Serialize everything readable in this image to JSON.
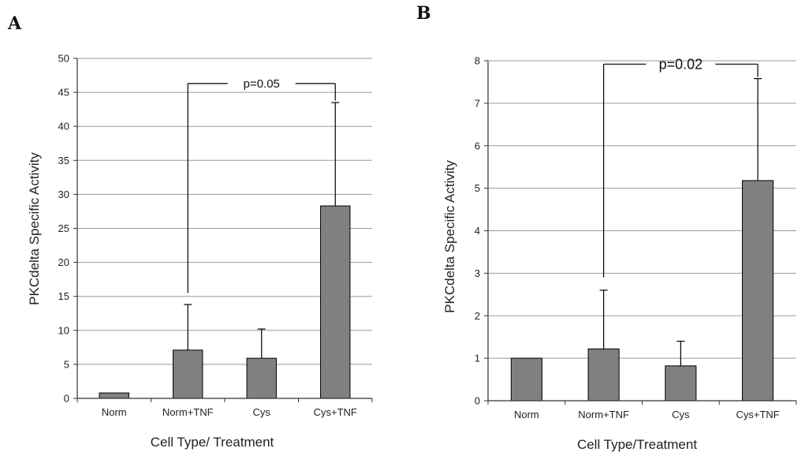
{
  "chart_data": [
    {
      "panel": "A",
      "type": "bar",
      "categories": [
        "Norm",
        "Norm+TNF",
        "Cys",
        "Cys+TNF"
      ],
      "values": [
        0.8,
        7.1,
        5.9,
        28.3
      ],
      "errors": [
        0,
        6.7,
        4.3,
        15.2
      ],
      "xlabel": "Cell Type/ Treatment",
      "ylabel": "PKCdelta Specific Activity",
      "ylim": [
        0,
        50
      ],
      "yticks": [
        0,
        5,
        10,
        15,
        20,
        25,
        30,
        35,
        40,
        45,
        50
      ],
      "grid": true,
      "bar_color": "#808080",
      "annotation": {
        "text": "p=0.05",
        "from": "Norm+TNF",
        "to": "Cys+TNF",
        "y": 46.3,
        "left_drop_to": 15.5,
        "right_drop_to": 43.8
      }
    },
    {
      "panel": "B",
      "type": "bar",
      "categories": [
        "Norm",
        "Norm+TNF",
        "Cys",
        "Cys+TNF"
      ],
      "values": [
        1.0,
        1.22,
        0.82,
        5.18
      ],
      "errors": [
        0,
        1.38,
        0.58,
        2.4
      ],
      "xlabel": "Cell Type/Treatment",
      "ylabel": "PKCdelta Specific Activity",
      "ylim": [
        0,
        8
      ],
      "yticks": [
        0,
        1,
        2,
        3,
        4,
        5,
        6,
        7,
        8
      ],
      "grid": true,
      "bar_color": "#808080",
      "annotation": {
        "text": "p=0.02",
        "from": "Norm+TNF",
        "to": "Cys+TNF",
        "y": 7.92,
        "left_drop_to": 2.9,
        "right_drop_to": 7.62
      }
    }
  ]
}
